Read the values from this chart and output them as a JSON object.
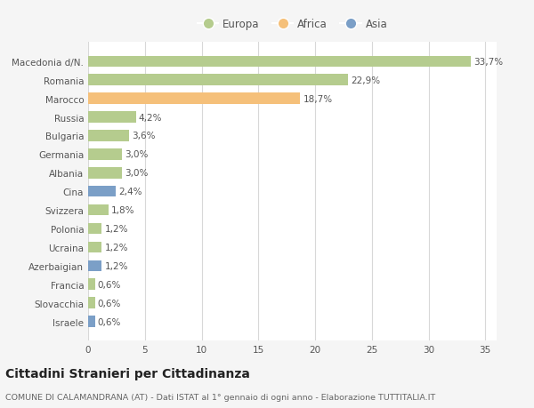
{
  "countries": [
    "Macedonia d/N.",
    "Romania",
    "Marocco",
    "Russia",
    "Bulgaria",
    "Germania",
    "Albania",
    "Cina",
    "Svizzera",
    "Polonia",
    "Ucraina",
    "Azerbaigian",
    "Francia",
    "Slovacchia",
    "Israele"
  ],
  "values": [
    33.7,
    22.9,
    18.7,
    4.2,
    3.6,
    3.0,
    3.0,
    2.4,
    1.8,
    1.2,
    1.2,
    1.2,
    0.6,
    0.6,
    0.6
  ],
  "labels": [
    "33,7%",
    "22,9%",
    "18,7%",
    "4,2%",
    "3,6%",
    "3,0%",
    "3,0%",
    "2,4%",
    "1,8%",
    "1,2%",
    "1,2%",
    "1,2%",
    "0,6%",
    "0,6%",
    "0,6%"
  ],
  "colors": [
    "#b5cc8e",
    "#b5cc8e",
    "#f5c07a",
    "#b5cc8e",
    "#b5cc8e",
    "#b5cc8e",
    "#b5cc8e",
    "#7b9fc7",
    "#b5cc8e",
    "#b5cc8e",
    "#b5cc8e",
    "#7b9fc7",
    "#b5cc8e",
    "#b5cc8e",
    "#7b9fc7"
  ],
  "legend_labels": [
    "Europa",
    "Africa",
    "Asia"
  ],
  "legend_colors": [
    "#b5cc8e",
    "#f5c07a",
    "#7b9fc7"
  ],
  "title": "Cittadini Stranieri per Cittadinanza",
  "subtitle": "COMUNE DI CALAMANDRANA (AT) - Dati ISTAT al 1° gennaio di ogni anno - Elaborazione TUTTITALIA.IT",
  "xlim": [
    0,
    36
  ],
  "xticks": [
    0,
    5,
    10,
    15,
    20,
    25,
    30,
    35
  ],
  "bg_color": "#f5f5f5",
  "bar_bg_color": "#ffffff",
  "grid_color": "#d8d8d8",
  "label_fontsize": 7.5,
  "tick_fontsize": 7.5,
  "title_fontsize": 10,
  "subtitle_fontsize": 6.8
}
